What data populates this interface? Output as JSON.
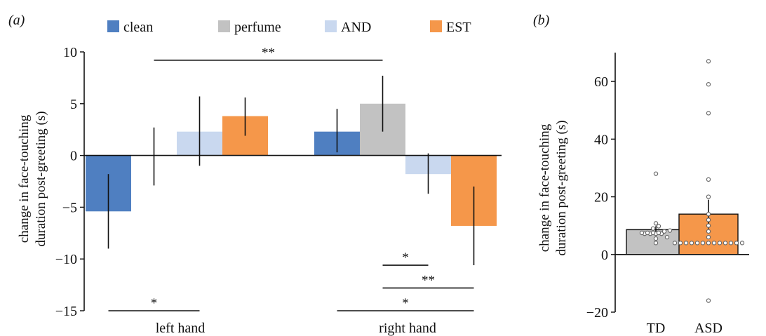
{
  "colors": {
    "clean": "#4f7fc1",
    "perfume": "#c2c2c2",
    "AND": "#c9d8ef",
    "EST": "#f5974a",
    "TD": "#c2c2c2",
    "ASD": "#f5974a",
    "axis": "#111111"
  },
  "chart_data": [
    {
      "panel_label": "(a)",
      "type": "bar",
      "ylabel": [
        "change in face-touching",
        "duration post-greeting (s)"
      ],
      "ylim": [
        -15,
        10
      ],
      "yticks": [
        10,
        5,
        0,
        -5,
        -10,
        -15
      ],
      "ytick_labels": [
        "10",
        "5",
        "0",
        "−5",
        "−10",
        "−15"
      ],
      "categories": [
        "left hand",
        "right hand"
      ],
      "legend": {
        "placement": "top",
        "entries": [
          "clean",
          "perfume",
          "AND",
          "EST"
        ]
      },
      "series": [
        {
          "name": "clean",
          "values": [
            -5.4,
            2.3
          ],
          "err_low": [
            -9.0,
            0.3
          ],
          "err_high": [
            -1.8,
            4.5
          ]
        },
        {
          "name": "perfume",
          "values": [
            0.0,
            5.0
          ],
          "err_low": [
            -2.9,
            2.3
          ],
          "err_high": [
            2.7,
            7.7
          ]
        },
        {
          "name": "AND",
          "values": [
            2.3,
            -1.8
          ],
          "err_low": [
            -1.0,
            -3.7
          ],
          "err_high": [
            5.7,
            0.2
          ]
        },
        {
          "name": "EST",
          "values": [
            3.8,
            -6.8
          ],
          "err_low": [
            1.9,
            -10.6
          ],
          "err_high": [
            5.6,
            -3.0
          ]
        }
      ],
      "significance": [
        {
          "label": "**",
          "y": 9.2,
          "from": [
            0,
            "perfume"
          ],
          "to": [
            1,
            "perfume"
          ]
        },
        {
          "label": "*",
          "y": -15.0,
          "from": [
            0,
            "clean"
          ],
          "to": [
            0,
            "AND"
          ]
        },
        {
          "label": "*",
          "y": -10.6,
          "from": [
            1,
            "perfume"
          ],
          "to": [
            1,
            "AND"
          ]
        },
        {
          "label": "**",
          "y": -12.8,
          "from": [
            1,
            "perfume"
          ],
          "to": [
            1,
            "EST"
          ]
        },
        {
          "label": "*",
          "y": -15.0,
          "from": [
            1,
            "clean"
          ],
          "to": [
            1,
            "EST"
          ]
        }
      ]
    },
    {
      "panel_label": "(b)",
      "type": "bar",
      "ylabel": [
        "change in face-touching",
        "duration post-greeting (s)"
      ],
      "ylim": [
        -20,
        70
      ],
      "yticks": [
        60,
        40,
        20,
        0,
        -20
      ],
      "ytick_labels": [
        "60",
        "40",
        "20",
        "0",
        "−20"
      ],
      "categories": [
        "TD",
        "ASD"
      ],
      "values": [
        8.6,
        14.0
      ],
      "err_low": [
        7.5,
        9.0
      ],
      "err_high": [
        9.8,
        19.0
      ],
      "points": [
        [
          7.2,
          7.2,
          7.2,
          7.2,
          7.5,
          7.5,
          7.5,
          7.5,
          8.0,
          8.3,
          9.0,
          9.8,
          10.8,
          6.0,
          5.5,
          4.0,
          28.0
        ],
        [
          4.0,
          4.0,
          4.0,
          4.0,
          4.0,
          4.0,
          4.0,
          4.0,
          4.0,
          4.0,
          4.0,
          4.0,
          4.0,
          6.0,
          8.0,
          10.0,
          12.0,
          14.0,
          20.0,
          26.0,
          49.0,
          59.0,
          67.0,
          -16.0
        ]
      ]
    }
  ]
}
